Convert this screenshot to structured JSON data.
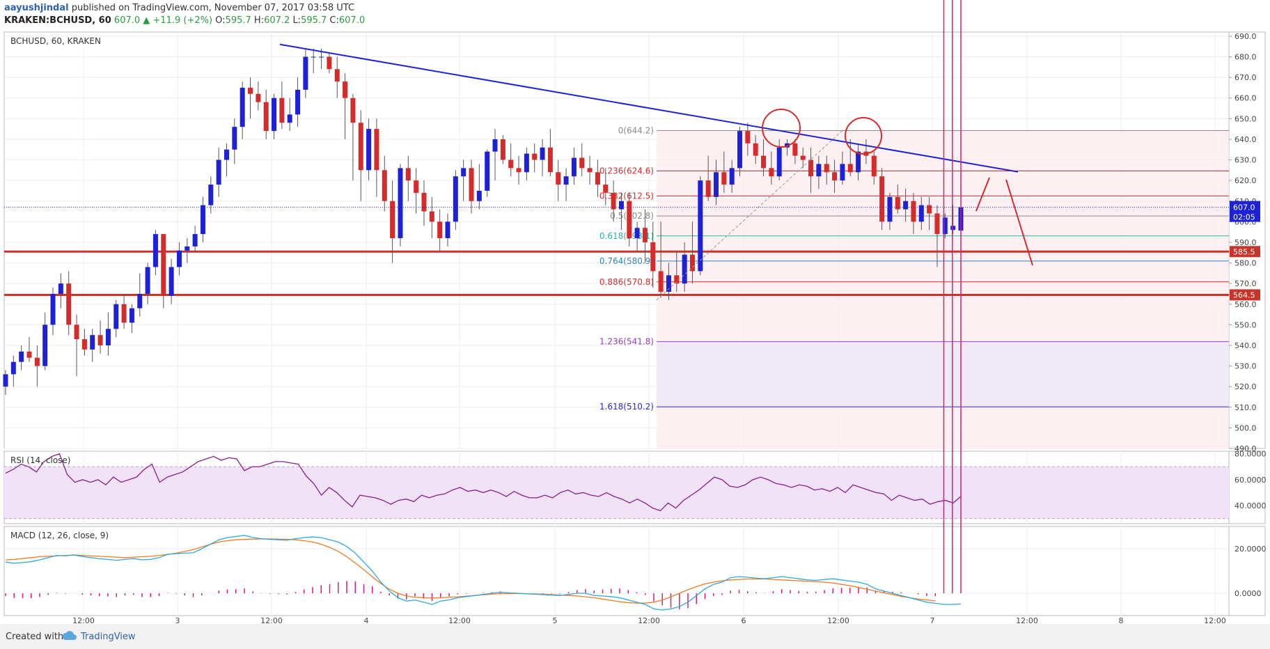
{
  "header": {
    "author": "aayushjindal",
    "published_on": "published on TradingView.com, November 07, 2017 03:58 UTC",
    "symbol": "KRAKEN:BCHUSD, 60",
    "change": "607.0 ▲ +11.9 (+2%)",
    "o_label": "O:",
    "o_value": "595.7",
    "h_label": "H:",
    "h_value": "607.2",
    "l_label": "L:",
    "l_value": "595.7",
    "c_label": "C:",
    "c_value": "607.0"
  },
  "chart_title": "BCHUSD, 60, KRAKEN",
  "rsi_label": "RSI (14, close)",
  "macd_label": "MACD (12, 26, close, 9)",
  "footer": {
    "created_with": "Created with",
    "brand": "TradingView"
  },
  "colors": {
    "up": "#1e22d6",
    "down": "#d62b2b",
    "trend": "#1e22d6",
    "level": "#c8342a",
    "rsi": "#8b1c8b",
    "macd": "#2ea7e0",
    "signal": "#f07b22",
    "hist": "#e0197d"
  },
  "chart_data": [
    {
      "type": "candlestick",
      "title": "BCHUSD, 60, KRAKEN",
      "ylim": [
        490,
        692
      ],
      "y_ticks": [
        "690.0",
        "680.0",
        "670.0",
        "660.0",
        "650.0",
        "640.0",
        "630.0",
        "620.0",
        "610.0",
        "600.0",
        "590.0",
        "580.0",
        "570.0",
        "560.0",
        "550.0",
        "540.0",
        "530.0",
        "520.0",
        "510.0",
        "500.0",
        "490.0"
      ],
      "x_ticks": [
        "12:00",
        "3",
        "12:00",
        "4",
        "12:00",
        "5",
        "12:00",
        "6",
        "12:00",
        "7",
        "12:00",
        "8",
        "12:00"
      ],
      "last_price": "607.0",
      "countdown": "02:05",
      "candles": [
        [
          520,
          528,
          516,
          526
        ],
        [
          526,
          535,
          520,
          532
        ],
        [
          532,
          540,
          528,
          537
        ],
        [
          537,
          544,
          532,
          534
        ],
        [
          534,
          540,
          520,
          530
        ],
        [
          530,
          556,
          528,
          550
        ],
        [
          550,
          568,
          545,
          565
        ],
        [
          565,
          575,
          558,
          570
        ],
        [
          570,
          576,
          545,
          550
        ],
        [
          550,
          555,
          525,
          543
        ],
        [
          543,
          548,
          535,
          538
        ],
        [
          538,
          548,
          532,
          545
        ],
        [
          545,
          552,
          536,
          540
        ],
        [
          540,
          556,
          535,
          548
        ],
        [
          548,
          562,
          544,
          560
        ],
        [
          560,
          565,
          548,
          551
        ],
        [
          551,
          560,
          546,
          558
        ],
        [
          558,
          575,
          554,
          565
        ],
        [
          565,
          580,
          560,
          578
        ],
        [
          578,
          596,
          574,
          594
        ],
        [
          594,
          594,
          558,
          564
        ],
        [
          564,
          582,
          560,
          578
        ],
        [
          578,
          590,
          574,
          586
        ],
        [
          586,
          592,
          580,
          588
        ],
        [
          588,
          598,
          585,
          594
        ],
        [
          594,
          612,
          590,
          608
        ],
        [
          608,
          622,
          604,
          618
        ],
        [
          618,
          636,
          612,
          630
        ],
        [
          630,
          638,
          622,
          635
        ],
        [
          635,
          650,
          628,
          646
        ],
        [
          646,
          668,
          640,
          665
        ],
        [
          665,
          670,
          650,
          662
        ],
        [
          662,
          668,
          654,
          658
        ],
        [
          658,
          664,
          640,
          644
        ],
        [
          644,
          662,
          640,
          660
        ],
        [
          660,
          668,
          645,
          648
        ],
        [
          648,
          660,
          644,
          652
        ],
        [
          652,
          670,
          646,
          664
        ],
        [
          664,
          684,
          660,
          680
        ],
        [
          680,
          684,
          672,
          680
        ],
        [
          680,
          684,
          674,
          680
        ],
        [
          680,
          682,
          672,
          674
        ],
        [
          674,
          680,
          660,
          668
        ],
        [
          668,
          672,
          640,
          660
        ],
        [
          660,
          662,
          620,
          648
        ],
        [
          648,
          654,
          610,
          625
        ],
        [
          625,
          650,
          620,
          645
        ],
        [
          645,
          650,
          612,
          625
        ],
        [
          625,
          632,
          605,
          610
        ],
        [
          610,
          620,
          580,
          592
        ],
        [
          592,
          628,
          588,
          626
        ],
        [
          626,
          632,
          610,
          620
        ],
        [
          620,
          626,
          604,
          614
        ],
        [
          614,
          620,
          598,
          605
        ],
        [
          605,
          612,
          592,
          600
        ],
        [
          600,
          606,
          586,
          592
        ],
        [
          592,
          604,
          588,
          600
        ],
        [
          600,
          625,
          596,
          622
        ],
        [
          622,
          630,
          610,
          626
        ],
        [
          626,
          630,
          604,
          610
        ],
        [
          610,
          628,
          606,
          615
        ],
        [
          615,
          635,
          612,
          634
        ],
        [
          634,
          645,
          620,
          640
        ],
        [
          640,
          642,
          628,
          630
        ],
        [
          630,
          638,
          622,
          626
        ],
        [
          626,
          632,
          618,
          624
        ],
        [
          624,
          636,
          620,
          633
        ],
        [
          633,
          638,
          624,
          630
        ],
        [
          630,
          640,
          622,
          636
        ],
        [
          636,
          645,
          622,
          624
        ],
        [
          624,
          630,
          610,
          618
        ],
        [
          618,
          626,
          610,
          622
        ],
        [
          622,
          636,
          618,
          631
        ],
        [
          631,
          638,
          622,
          626
        ],
        [
          626,
          632,
          618,
          624
        ],
        [
          624,
          630,
          612,
          618
        ],
        [
          618,
          626,
          608,
          614
        ],
        [
          614,
          620,
          600,
          606
        ],
        [
          606,
          614,
          596,
          610
        ],
        [
          610,
          614,
          588,
          592
        ],
        [
          592,
          600,
          586,
          597
        ],
        [
          597,
          606,
          580,
          590
        ],
        [
          590,
          600,
          568,
          576
        ],
        [
          576,
          600,
          563,
          566
        ],
        [
          566,
          580,
          562,
          574
        ],
        [
          574,
          586,
          566,
          570
        ],
        [
          570,
          590,
          566,
          584
        ],
        [
          584,
          600,
          570,
          576
        ],
        [
          576,
          622,
          574,
          620
        ],
        [
          620,
          632,
          610,
          612
        ],
        [
          612,
          630,
          608,
          624
        ],
        [
          624,
          634,
          614,
          618
        ],
        [
          618,
          630,
          614,
          626
        ],
        [
          626,
          646,
          622,
          644
        ],
        [
          644,
          648,
          632,
          638
        ],
        [
          638,
          642,
          628,
          632
        ],
        [
          632,
          640,
          622,
          626
        ],
        [
          626,
          634,
          618,
          622
        ],
        [
          622,
          640,
          620,
          636
        ],
        [
          636,
          640,
          632,
          638
        ],
        [
          638,
          640,
          628,
          632
        ],
        [
          632,
          636,
          626,
          630
        ],
        [
          630,
          636,
          614,
          622
        ],
        [
          622,
          632,
          616,
          628
        ],
        [
          628,
          632,
          618,
          624
        ],
        [
          624,
          630,
          614,
          620
        ],
        [
          620,
          634,
          618,
          628
        ],
        [
          628,
          640,
          622,
          624
        ],
        [
          624,
          638,
          620,
          634
        ],
        [
          634,
          640,
          628,
          632
        ],
        [
          632,
          634,
          618,
          622
        ],
        [
          622,
          626,
          596,
          600
        ],
        [
          600,
          614,
          596,
          612
        ],
        [
          612,
          618,
          604,
          606
        ],
        [
          606,
          616,
          600,
          610
        ],
        [
          610,
          614,
          594,
          600
        ],
        [
          600,
          612,
          596,
          608
        ],
        [
          608,
          612,
          596,
          604
        ],
        [
          604,
          608,
          578,
          594
        ],
        [
          594,
          604,
          592,
          602
        ],
        [
          596,
          608,
          594,
          598
        ],
        [
          595.7,
          607.2,
          595.7,
          607
        ]
      ],
      "horizontal_levels": [
        585.5,
        564.5
      ],
      "level_labels": [
        "585.5",
        "564.5"
      ],
      "fibonacci": [
        {
          "ratio": "0",
          "price": 644.2,
          "label": "0(644.2)"
        },
        {
          "ratio": "0.236",
          "price": 624.6,
          "label": "0.236(624.6)"
        },
        {
          "ratio": "0.382",
          "price": 612.5,
          "label": "0.382(612.5)"
        },
        {
          "ratio": "0.5",
          "price": 602.8,
          "label": "0.5(602.8)"
        },
        {
          "ratio": "0.618",
          "price": 593.1,
          "label": "0.618(593.1)"
        },
        {
          "ratio": "0.764",
          "price": 580.9,
          "label": "0.764(580.9)"
        },
        {
          "ratio": "0.886",
          "price": 570.8,
          "label": "0.886(570.8)"
        },
        {
          "ratio": "1.236",
          "price": 541.8,
          "label": "1.236(541.8)"
        },
        {
          "ratio": "1.618",
          "price": 510.2,
          "label": "1.618(510.2)"
        }
      ]
    },
    {
      "type": "line",
      "title": "RSI (14, close)",
      "ylim": [
        26,
        82
      ],
      "y_ticks": [
        "80.0000",
        "60.0000",
        "40.0000"
      ],
      "bands": [
        70,
        30
      ],
      "values": [
        65,
        68,
        72,
        70,
        66,
        74,
        78,
        80,
        64,
        58,
        60,
        58,
        60,
        56,
        62,
        58,
        60,
        62,
        68,
        72,
        58,
        62,
        64,
        66,
        70,
        74,
        76,
        78,
        75,
        77,
        76,
        67,
        70,
        70,
        72,
        74,
        74,
        73,
        72,
        63,
        57,
        48,
        54,
        50,
        44,
        39,
        48,
        47,
        46,
        44,
        41,
        44,
        45,
        43,
        48,
        46,
        48,
        49,
        52,
        54,
        51,
        52,
        50,
        52,
        50,
        47,
        51,
        48,
        46,
        46,
        48,
        46,
        50,
        52,
        49,
        50,
        48,
        47,
        50,
        47,
        45,
        42,
        45,
        42,
        38,
        36,
        42,
        38,
        44,
        48,
        52,
        57,
        62,
        60,
        55,
        54,
        56,
        60,
        62,
        60,
        57,
        56,
        54,
        56,
        55,
        52,
        53,
        51,
        54,
        50,
        56,
        54,
        52,
        50,
        49,
        44,
        48,
        46,
        44,
        45,
        41,
        43,
        44,
        42,
        47
      ]
    },
    {
      "type": "line",
      "title": "MACD (12, 26, close, 9)",
      "ylim": [
        -10,
        30
      ],
      "y_ticks": [
        "20.0000",
        "0.0000"
      ],
      "series": [
        {
          "name": "MACD",
          "values": [
            14,
            13.5,
            13.8,
            14.2,
            15,
            16,
            17,
            16.8,
            17.2,
            16.5,
            16,
            15.5,
            15.2,
            14.8,
            15.2,
            15.6,
            15,
            15.2,
            16,
            17.5,
            17.8,
            18,
            18.2,
            20,
            22,
            24,
            25,
            25.5,
            26,
            25,
            24.5,
            24.2,
            24,
            23.8,
            24.5,
            25,
            25.3,
            25,
            24,
            23,
            21,
            18,
            14,
            10,
            5,
            1,
            -2,
            -3.5,
            -3,
            -4,
            -5,
            -3.5,
            -3,
            -2,
            -1.5,
            -1,
            -0.5,
            0,
            0.5,
            0.2,
            0,
            -0.2,
            -0.4,
            -0.6,
            -0.8,
            -1,
            -0.5,
            0,
            0,
            -1,
            -1.2,
            -1.5,
            -2,
            -3,
            -4,
            -5,
            -7,
            -7.5,
            -7,
            -6,
            -4,
            -1,
            2,
            4,
            5,
            7,
            7.5,
            7.2,
            6.8,
            6.5,
            7,
            7.5,
            7,
            6.5,
            6,
            5.8,
            6.2,
            6.5,
            6,
            5.5,
            5,
            4,
            2,
            1,
            0,
            -1,
            -2,
            -3,
            -4,
            -4.5,
            -5,
            -5,
            -4.8
          ]
        },
        {
          "name": "Signal",
          "values": [
            15,
            15.2,
            15.6,
            16,
            16.4,
            16.6,
            16.8,
            17,
            17.2,
            17,
            16.8,
            16.6,
            16.4,
            16.2,
            16,
            16.2,
            16.4,
            16.6,
            17,
            17.4,
            18,
            18.8,
            19.6,
            20.8,
            22,
            23,
            23.6,
            24,
            24.2,
            24.3,
            24.4,
            24.4,
            24.3,
            24.2,
            24,
            23.6,
            23,
            22,
            20.6,
            18.8,
            16.4,
            13.6,
            10.6,
            7.4,
            4.4,
            1.8,
            0,
            -1.2,
            -1.8,
            -2,
            -2.1,
            -2,
            -1.8,
            -1.6,
            -1.3,
            -1,
            -0.7,
            -0.4,
            -0.2,
            -0.1,
            -0.1,
            -0.2,
            -0.3,
            -0.4,
            -0.6,
            -0.8,
            -1,
            -1.2,
            -1.6,
            -2,
            -2.6,
            -3.2,
            -3.8,
            -4.2,
            -4.4,
            -4.4,
            -4,
            -3,
            -1.6,
            0,
            1.6,
            3,
            4.2,
            5,
            5.6,
            6,
            6.2,
            6.4,
            6.4,
            6.4,
            6.2,
            6,
            5.8,
            5.6,
            5.4,
            5.2,
            5,
            4.6,
            4,
            3.4,
            2.6,
            1.8,
            1,
            0.2,
            -0.6,
            -1.4,
            -2,
            -2.6,
            -3,
            -3.4
          ]
        }
      ]
    }
  ]
}
